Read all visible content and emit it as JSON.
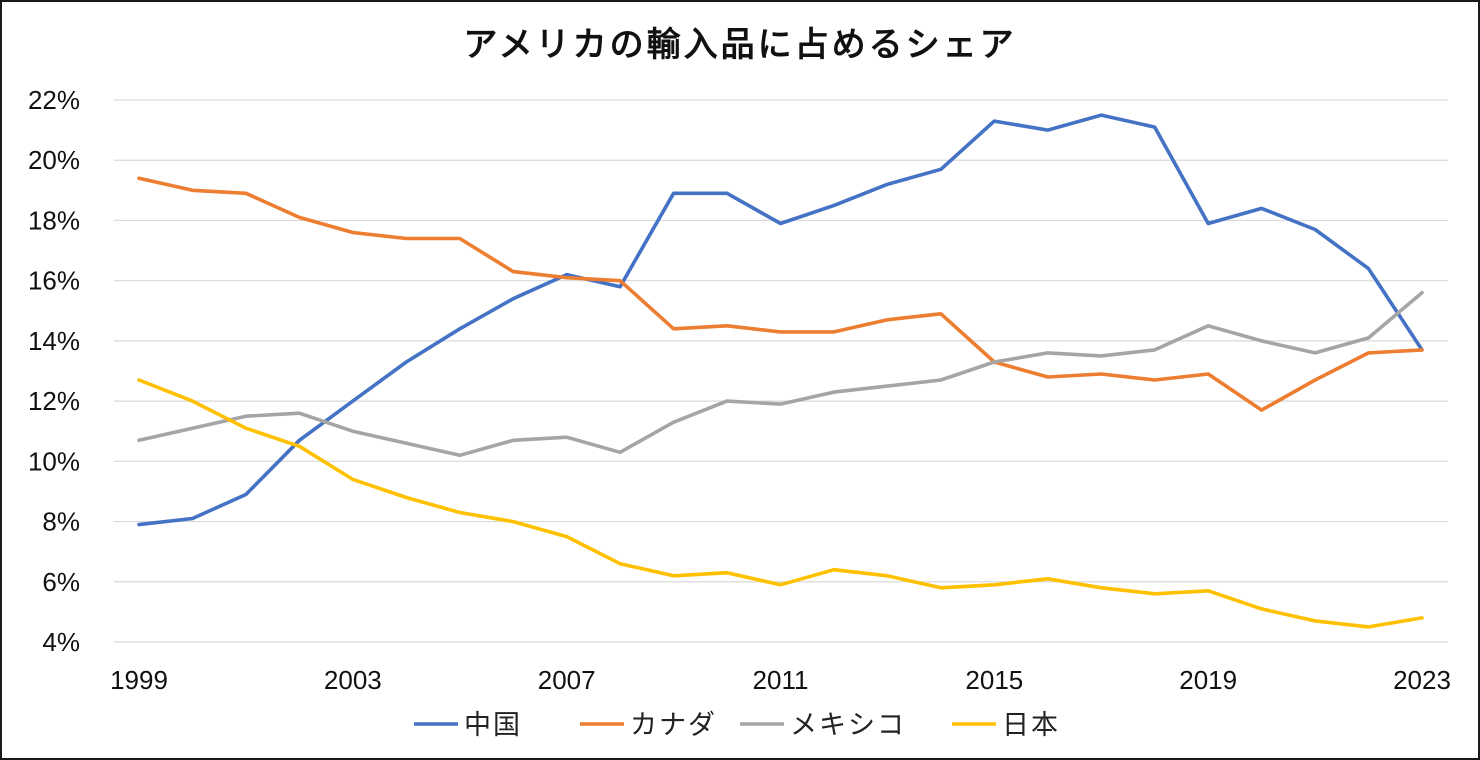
{
  "colors": {
    "中国": "#4472C4",
    "カナダ": "#ED7D31",
    "メキシコ": "#A5A5A5",
    "日本": "#FFC000"
  },
  "chart_data": {
    "type": "line",
    "title": "アメリカの輸入品に占めるシェア",
    "x": [
      1999,
      2000,
      2001,
      2002,
      2003,
      2004,
      2005,
      2006,
      2007,
      2008,
      2009,
      2010,
      2011,
      2012,
      2013,
      2014,
      2015,
      2016,
      2017,
      2018,
      2019,
      2020,
      2021,
      2022,
      2023
    ],
    "xticks": [
      "1999",
      "2003",
      "2007",
      "2011",
      "2015",
      "2019",
      "2023"
    ],
    "yticks": [
      "4%",
      "6%",
      "8%",
      "10%",
      "12%",
      "14%",
      "16%",
      "18%",
      "20%",
      "22%"
    ],
    "ylim": [
      4,
      22
    ],
    "yunit": "%",
    "grid": true,
    "legend_position": "bottom",
    "series": [
      {
        "name": "中国",
        "values": [
          7.9,
          8.1,
          8.9,
          10.7,
          12.0,
          13.3,
          14.4,
          15.4,
          16.2,
          15.8,
          18.9,
          18.9,
          17.9,
          18.5,
          19.2,
          19.7,
          21.3,
          21.0,
          21.5,
          21.1,
          17.9,
          18.4,
          17.7,
          16.4,
          13.7
        ]
      },
      {
        "name": "カナダ",
        "values": [
          19.4,
          19.0,
          18.9,
          18.1,
          17.6,
          17.4,
          17.4,
          16.3,
          16.1,
          16.0,
          14.4,
          14.5,
          14.3,
          14.3,
          14.7,
          14.9,
          13.3,
          12.8,
          12.9,
          12.7,
          12.9,
          11.7,
          12.7,
          13.6,
          13.7
        ]
      },
      {
        "name": "メキシコ",
        "values": [
          10.7,
          11.1,
          11.5,
          11.6,
          11.0,
          10.6,
          10.2,
          10.7,
          10.8,
          10.3,
          11.3,
          12.0,
          11.9,
          12.3,
          12.5,
          12.7,
          13.3,
          13.6,
          13.5,
          13.7,
          14.5,
          14.0,
          13.6,
          14.1,
          15.6
        ]
      },
      {
        "name": "日本",
        "values": [
          12.7,
          12.0,
          11.1,
          10.5,
          9.4,
          8.8,
          8.3,
          8.0,
          7.5,
          6.6,
          6.2,
          6.3,
          5.9,
          6.4,
          6.2,
          5.8,
          5.9,
          6.1,
          5.8,
          5.6,
          5.7,
          5.1,
          4.7,
          4.5,
          4.8
        ]
      }
    ]
  }
}
